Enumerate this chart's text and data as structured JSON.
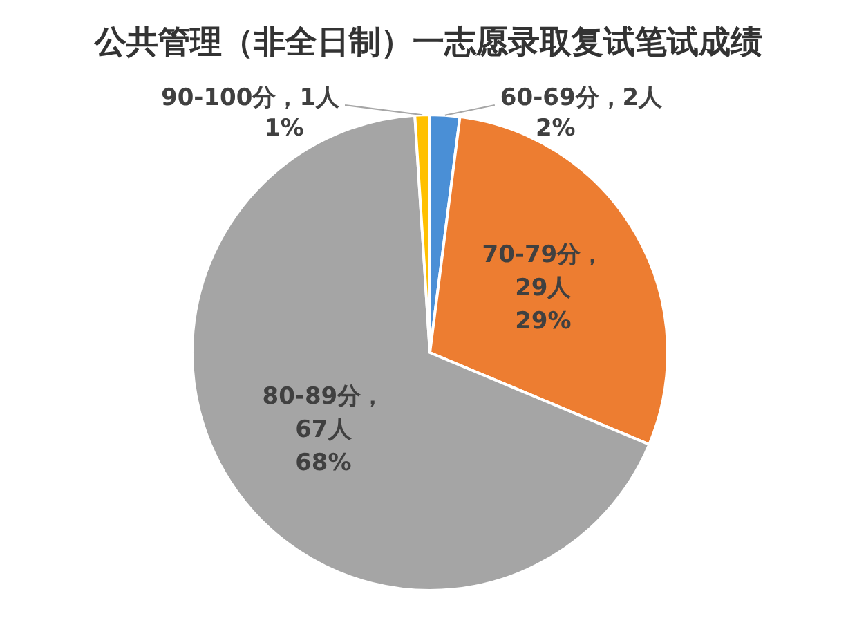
{
  "chart_data": {
    "type": "pie",
    "title": "公共管理（非全日制）一志愿录取复试笔试成绩",
    "categories": [
      "60-69分",
      "70-79分",
      "80-89分",
      "90-100分"
    ],
    "values": [
      2,
      29,
      67,
      1
    ],
    "colors": [
      "#4a8fd6",
      "#ed7d31",
      "#a5a5a5",
      "#ffc000"
    ],
    "value_labels": [
      "，2人",
      "，29人",
      "，67人",
      "，1人"
    ],
    "annotations": [
      {
        "text": "2%",
        "x": "60-69分"
      },
      {
        "text": "29%",
        "x": "70-79分"
      },
      {
        "text": "68%",
        "x": "80-89分"
      },
      {
        "text": "1%",
        "x": "90-100分"
      }
    ]
  }
}
